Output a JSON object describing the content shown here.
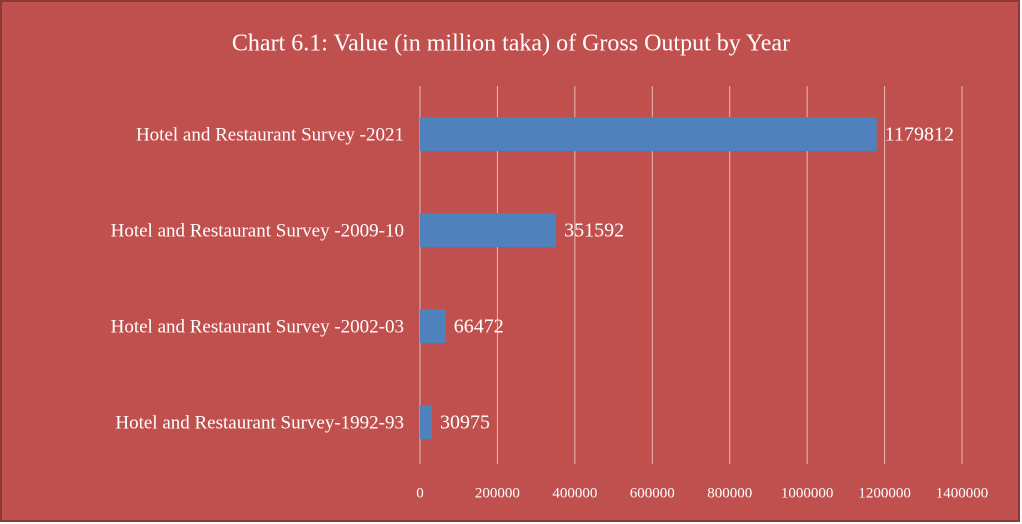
{
  "chart_data": {
    "type": "bar",
    "orientation": "horizontal",
    "title": "Chart 6.1: Value (in million taka) of Gross Output by Year",
    "categories": [
      "Hotel and Restaurant Survey -2021",
      "Hotel and Restaurant Survey -2009-10",
      "Hotel and Restaurant Survey -2002-03",
      "Hotel and Restaurant Survey-1992-93"
    ],
    "values": [
      1179812,
      351592,
      66472,
      30975
    ],
    "color": "#4f81bd",
    "xlim": [
      0,
      1400000
    ],
    "xticks": [
      0,
      200000,
      400000,
      600000,
      800000,
      1000000,
      1200000,
      1400000
    ],
    "grid": true
  }
}
